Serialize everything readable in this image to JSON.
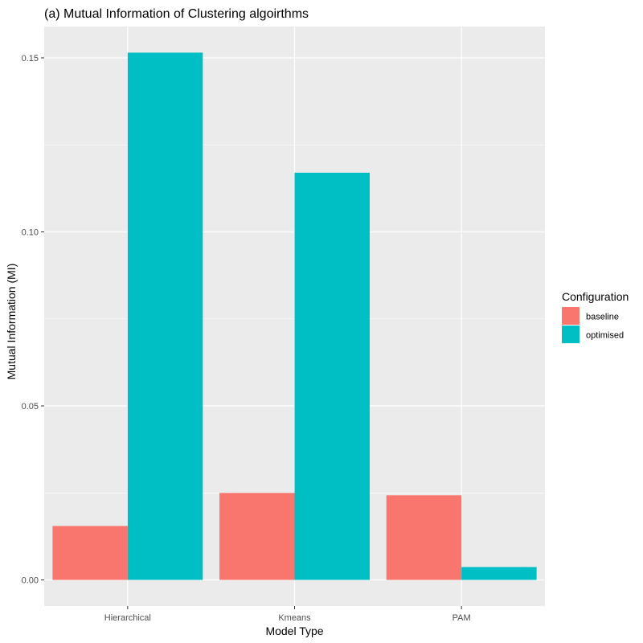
{
  "chart_data": {
    "type": "bar",
    "title": "(a) Mutual Information of Clustering algoirthms",
    "xlabel": "Model Type",
    "ylabel": "Mutual Information (MI)",
    "categories": [
      "Hierarchical",
      "Kmeans",
      "PAM"
    ],
    "series": [
      {
        "name": "baseline",
        "values": [
          0.0155,
          0.025,
          0.0243
        ],
        "color": "#F8766D"
      },
      {
        "name": "optimised",
        "values": [
          0.1515,
          0.117,
          0.0037
        ],
        "color": "#00BFC4"
      }
    ],
    "ylim": [
      -0.0075,
      0.159
    ],
    "yticks": [
      0.0,
      0.05,
      0.1,
      0.15
    ],
    "ytick_labels": [
      "0.00",
      "0.05",
      "0.10",
      "0.15"
    ],
    "grid": true,
    "legend": {
      "title": "Configuration",
      "position": "right"
    },
    "panel_background": "#EBEBEB",
    "grid_color": "#FFFFFF"
  }
}
